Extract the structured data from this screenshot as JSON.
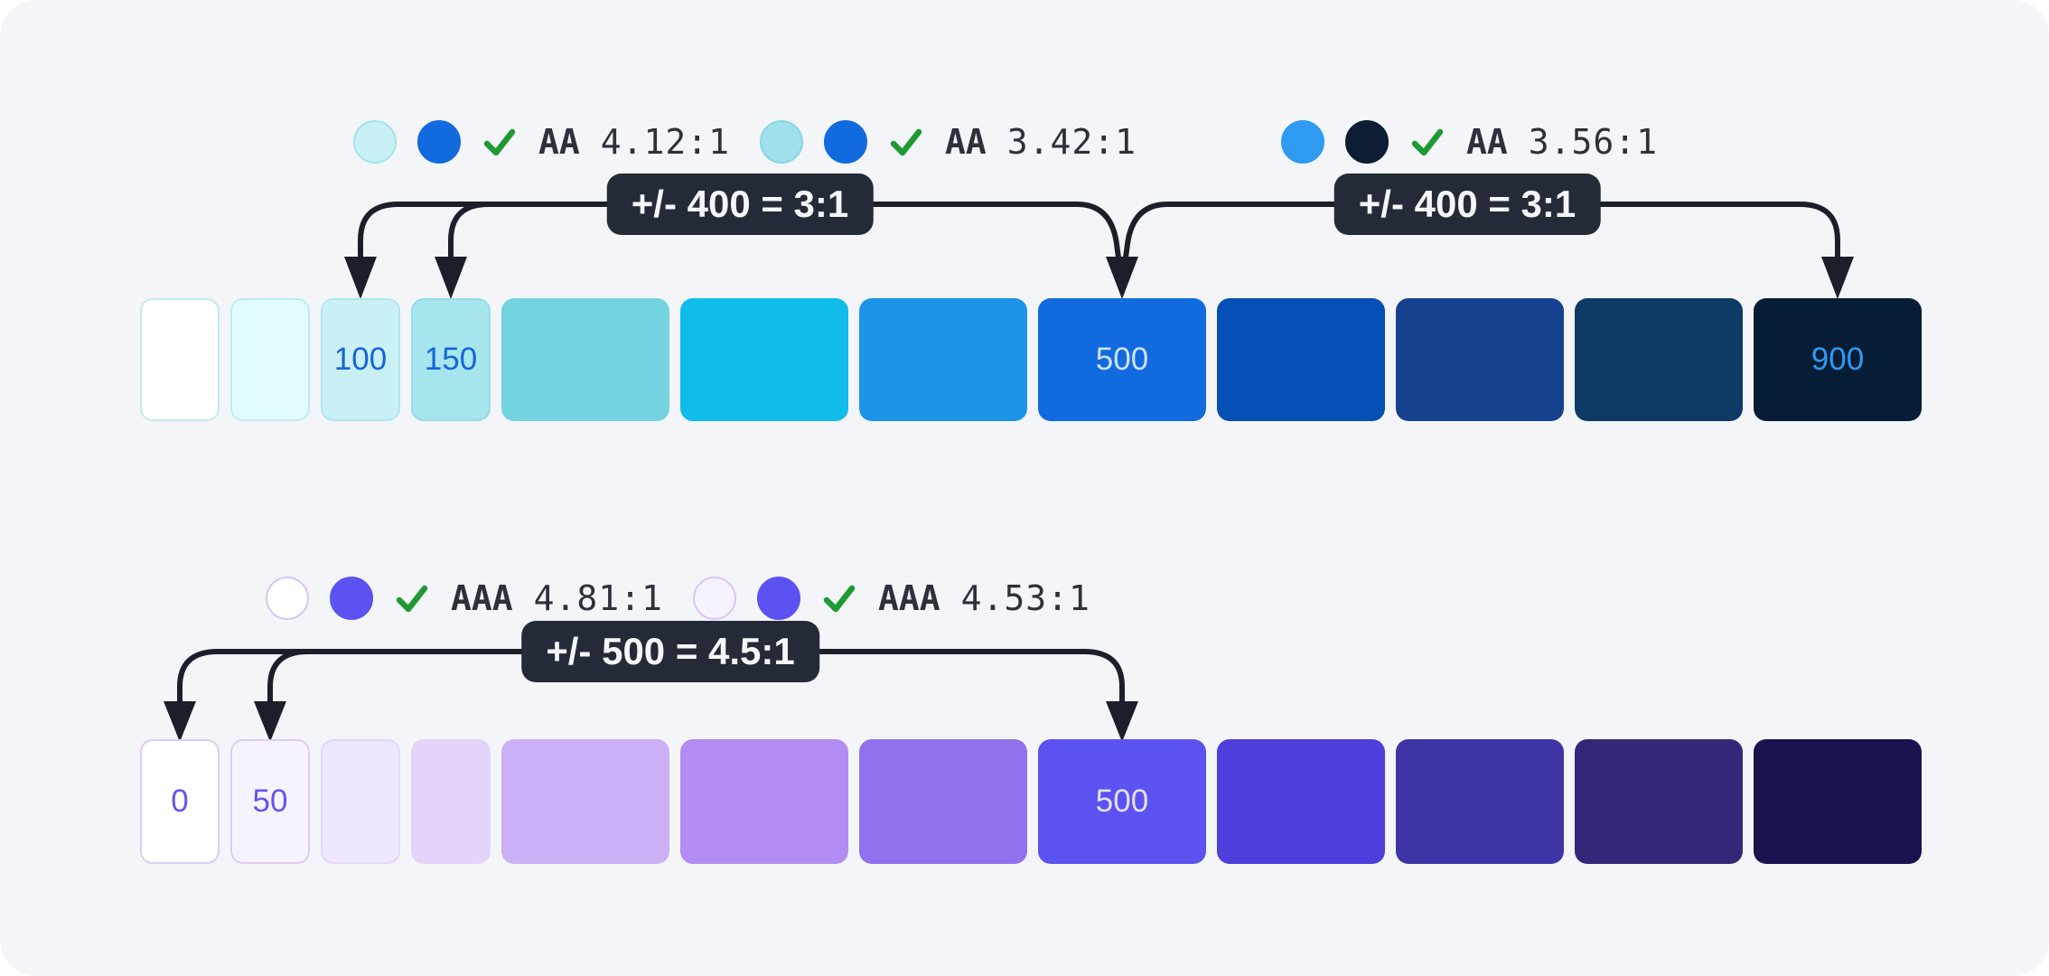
{
  "page": {
    "background": "#FFFFFF",
    "panel_background": "#F4F5F8"
  },
  "colors": {
    "connector": "#1B1F2A",
    "badge_bg": "#252A38",
    "badge_text": "#F5F6F8",
    "check": "#1F9A32",
    "annotation_text": "#2C313C"
  },
  "rows": [
    {
      "name": "blue-scale",
      "annotations": [
        {
          "circle1": {
            "fill": "#C9F0F5",
            "border": "#A5E3EC"
          },
          "circle2": {
            "fill": "#126ADF",
            "border": "#126ADF"
          },
          "level": "AA",
          "ratio": "4.12:1"
        },
        {
          "circle1": {
            "fill": "#A0E0EC",
            "border": "#8AD6E4"
          },
          "circle2": {
            "fill": "#126ADF",
            "border": "#126ADF"
          },
          "level": "AA",
          "ratio": "3.42:1"
        },
        {
          "circle1": {
            "fill": "#2E9BF1",
            "border": "#2E9BF1"
          },
          "circle2": {
            "fill": "#0D1D33",
            "border": "#0D1D33"
          },
          "level": "AA",
          "ratio": "3.56:1"
        }
      ],
      "badges": [
        {
          "label": "+/- 400 = 3:1"
        },
        {
          "label": "+/- 400 = 3:1"
        }
      ],
      "swatches": [
        {
          "fill": "#FFFFFF",
          "border": "#BFEBF1",
          "label": ""
        },
        {
          "fill": "#E2FBFB",
          "border": "#BFEBF1",
          "label": ""
        },
        {
          "fill": "#C9F0F5",
          "border": "#AEE6EE",
          "label": "100",
          "label_color": "#1565D9"
        },
        {
          "fill": "#A7E5EF",
          "border": "#97DCE8",
          "label": "150",
          "label_color": "#1565D9"
        },
        {
          "fill": "#73D3E1",
          "label": ""
        },
        {
          "fill": "#10BCE9",
          "label": ""
        },
        {
          "fill": "#1C95E9",
          "label": ""
        },
        {
          "fill": "#126ADF",
          "label": "500",
          "label_color": "#CDE2F9"
        },
        {
          "fill": "#0550B4",
          "label": ""
        },
        {
          "fill": "#15418F",
          "label": ""
        },
        {
          "fill": "#0E3A66",
          "label": ""
        },
        {
          "fill": "#071D35",
          "label": "900",
          "label_color": "#2D9BF3"
        }
      ]
    },
    {
      "name": "violet-scale",
      "annotations": [
        {
          "circle1": {
            "fill": "#FFFFFF",
            "border": "#D8C6F6"
          },
          "circle2": {
            "fill": "#5C52F1",
            "border": "#5C52F1"
          },
          "level": "AAA",
          "ratio": "4.81:1"
        },
        {
          "circle1": {
            "fill": "#F7F3FE",
            "border": "#D8C6F6"
          },
          "circle2": {
            "fill": "#5C52F1",
            "border": "#5C52F1"
          },
          "level": "AAA",
          "ratio": "4.53:1"
        }
      ],
      "badges": [
        {
          "label": "+/- 500 = 4.5:1"
        }
      ],
      "swatches": [
        {
          "fill": "#FFFFFF",
          "border": "#DCCBF8",
          "label": "0",
          "label_color": "#6455EE"
        },
        {
          "fill": "#F7F3FE",
          "border": "#DCCBF8",
          "label": "50",
          "label_color": "#6455EE"
        },
        {
          "fill": "#EFE7FD",
          "border": "#E3D7FB",
          "label": ""
        },
        {
          "fill": "#E3D4FA",
          "label": ""
        },
        {
          "fill": "#CBB0F6",
          "label": ""
        },
        {
          "fill": "#B28CF3",
          "label": ""
        },
        {
          "fill": "#8E72EE",
          "label": ""
        },
        {
          "fill": "#5C52F1",
          "label": "500",
          "label_color": "#E4E0FD"
        },
        {
          "fill": "#4E3EDB",
          "label": ""
        },
        {
          "fill": "#3F34A6",
          "label": ""
        },
        {
          "fill": "#332878",
          "label": ""
        },
        {
          "fill": "#18134E",
          "label": ""
        }
      ]
    }
  ]
}
